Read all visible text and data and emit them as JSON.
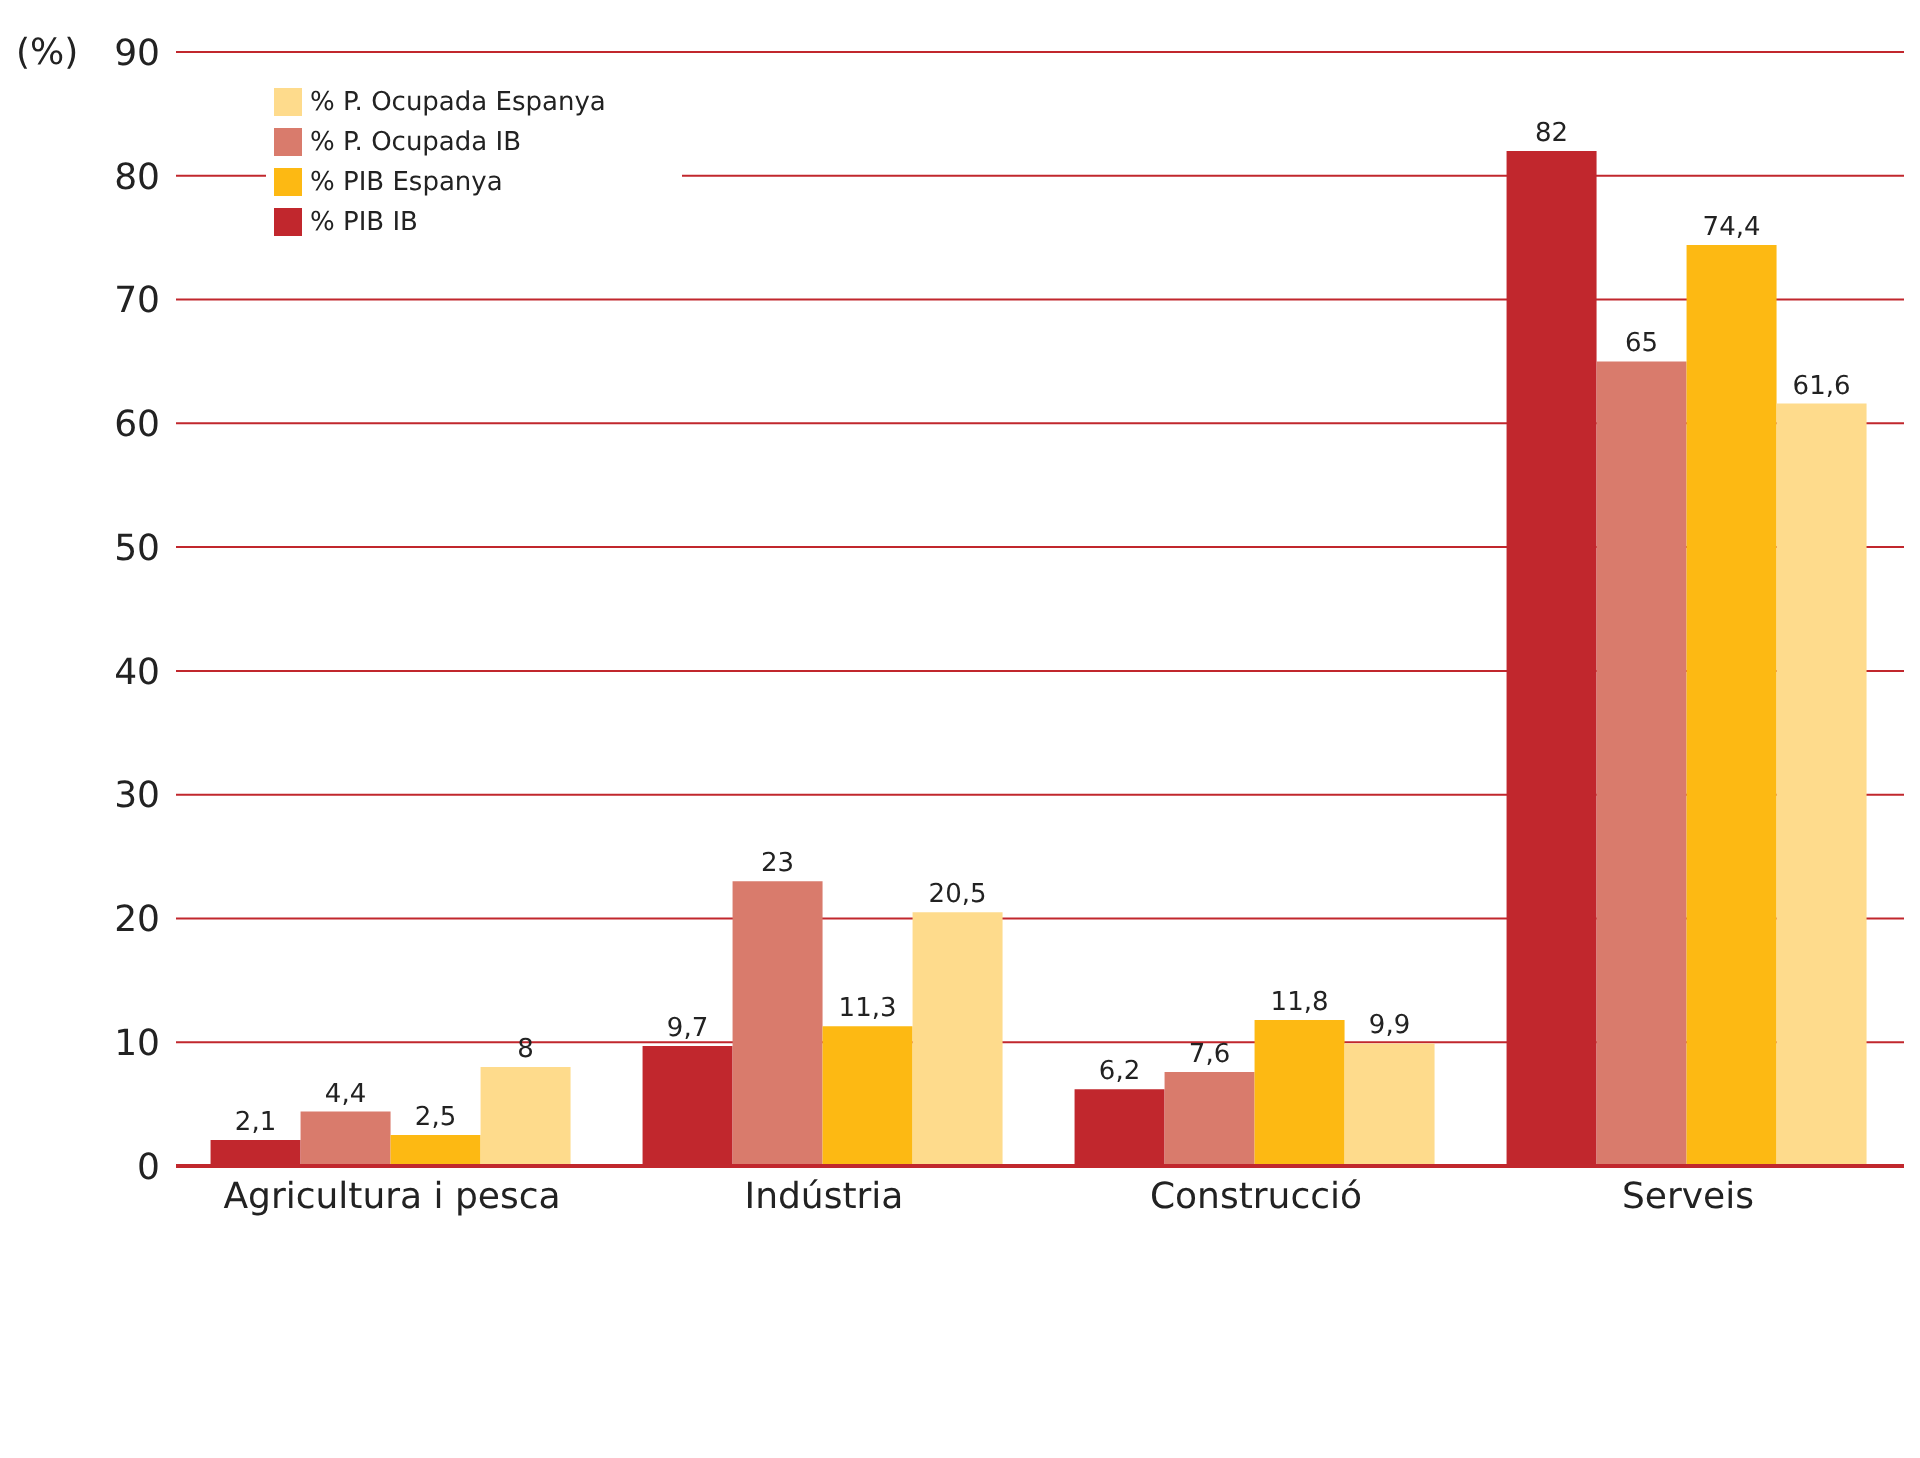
{
  "chart_data": {
    "type": "bar",
    "ylabel": "(%)",
    "categories": [
      "Agricultura i pesca",
      "Indústria",
      "Construcció",
      "Serveis"
    ],
    "series": [
      {
        "name": "% PIB IB",
        "color": "#c1272d",
        "values": [
          2.1,
          9.7,
          6.2,
          82
        ],
        "value_labels": [
          "2,1",
          "9,7",
          "6,2",
          "82"
        ]
      },
      {
        "name": "% P. Ocupada IB",
        "color": "#d97b6c",
        "values": [
          4.4,
          23,
          7.6,
          65
        ],
        "value_labels": [
          "4,4",
          "23",
          "7,6",
          "65"
        ]
      },
      {
        "name": "% PIB Espanya",
        "color": "#fdb913",
        "values": [
          2.5,
          11.3,
          11.8,
          74.4
        ],
        "value_labels": [
          "2,5",
          "11,3",
          "11,8",
          "74,4"
        ]
      },
      {
        "name": "% P. Ocupada Espanya",
        "color": "#fedb8c",
        "values": [
          8,
          20.5,
          9.9,
          61.6
        ],
        "value_labels": [
          "8",
          "20,5",
          "9,9",
          "61,6"
        ]
      }
    ],
    "ylim": [
      0,
      90
    ],
    "yticks": [
      0,
      10,
      20,
      30,
      40,
      50,
      60,
      70,
      80,
      90
    ],
    "grid": "y",
    "legend": "top left"
  }
}
